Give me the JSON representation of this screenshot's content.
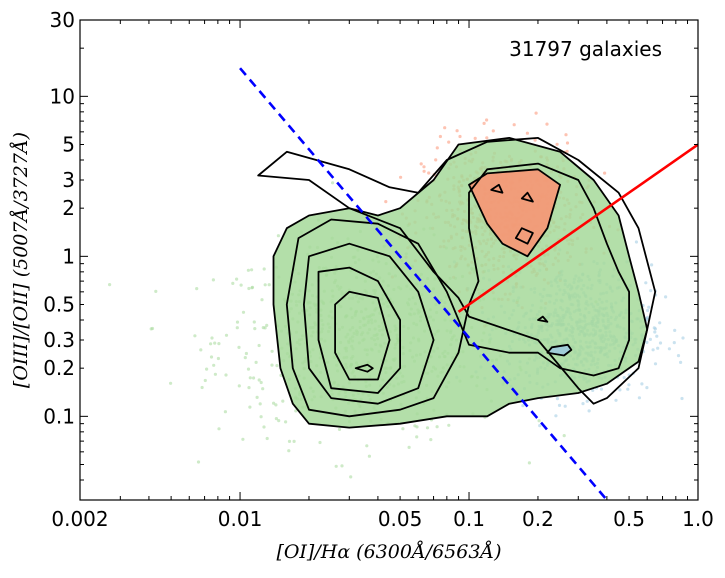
{
  "chart_data": {
    "type": "scatter",
    "title": "",
    "xlabel": "[OI]/Hα  (6300Å/6563Å)",
    "ylabel": "[OIII]/[OII]  (5007Å/3727Å)",
    "xscale": "log",
    "yscale": "log",
    "xlim": [
      0.002,
      1.0
    ],
    "ylim": [
      0.03,
      30
    ],
    "x_ticks": [
      {
        "value": 0.002,
        "label": "0.002"
      },
      {
        "value": 0.01,
        "label": "0.01"
      },
      {
        "value": 0.05,
        "label": "0.05"
      },
      {
        "value": 0.1,
        "label": "0.1"
      },
      {
        "value": 0.2,
        "label": "0.2"
      },
      {
        "value": 0.5,
        "label": "0.5"
      },
      {
        "value": 1.0,
        "label": "1.0"
      }
    ],
    "y_ticks": [
      {
        "value": 0.1,
        "label": "0.1"
      },
      {
        "value": 0.2,
        "label": "0.2"
      },
      {
        "value": 0.3,
        "label": "0.3"
      },
      {
        "value": 0.5,
        "label": "0.5"
      },
      {
        "value": 1,
        "label": "1"
      },
      {
        "value": 2,
        "label": "2"
      },
      {
        "value": 3,
        "label": "3"
      },
      {
        "value": 5,
        "label": "5"
      },
      {
        "value": 10,
        "label": "10"
      },
      {
        "value": 30,
        "label": "30"
      }
    ],
    "annotation": "31797 galaxies",
    "grid": false,
    "series": [
      {
        "color": "#a6d99a",
        "center": [
          0.035,
          0.3
        ],
        "spread": [
          0.32,
          0.3
        ]
      },
      {
        "color": "#fc9272",
        "center": [
          0.14,
          1.8
        ],
        "spread": [
          0.17,
          0.22
        ]
      },
      {
        "color": "#9ecae1",
        "center": [
          0.3,
          0.35
        ],
        "spread": [
          0.16,
          0.2
        ]
      }
    ],
    "lines": [
      {
        "style": "dashed",
        "color": "#0000ff",
        "points": [
          [
            0.01,
            15
          ],
          [
            0.4,
            0.03
          ]
        ]
      },
      {
        "style": "solid",
        "color": "#ff0000",
        "points": [
          [
            0.09,
            0.45
          ],
          [
            1.0,
            5
          ]
        ]
      }
    ],
    "contours": [
      [
        [
          0.012,
          3.2
        ],
        [
          0.02,
          3.0
        ],
        [
          0.03,
          2.0
        ],
        [
          0.05,
          1.5
        ],
        [
          0.07,
          0.8
        ],
        [
          0.09,
          0.55
        ],
        [
          0.1,
          0.42
        ],
        [
          0.2,
          0.3
        ],
        [
          0.3,
          0.15
        ],
        [
          0.35,
          0.12
        ],
        [
          0.4,
          0.13
        ],
        [
          0.55,
          0.2
        ],
        [
          0.6,
          0.35
        ],
        [
          0.65,
          0.6
        ],
        [
          0.55,
          1.5
        ],
        [
          0.45,
          2.5
        ],
        [
          0.3,
          4.0
        ],
        [
          0.2,
          5.5
        ],
        [
          0.12,
          5.2
        ],
        [
          0.08,
          4.0
        ],
        [
          0.06,
          2.5
        ],
        [
          0.045,
          2.7
        ],
        [
          0.03,
          3.5
        ],
        [
          0.016,
          4.5
        ],
        [
          0.012,
          3.2
        ]
      ],
      [
        [
          0.016,
          1.5
        ],
        [
          0.014,
          1.0
        ],
        [
          0.014,
          0.5
        ],
        [
          0.015,
          0.2
        ],
        [
          0.017,
          0.12
        ],
        [
          0.02,
          0.09
        ],
        [
          0.03,
          0.085
        ],
        [
          0.05,
          0.09
        ],
        [
          0.08,
          0.1
        ],
        [
          0.12,
          0.1
        ],
        [
          0.15,
          0.12
        ],
        [
          0.2,
          0.13
        ],
        [
          0.3,
          0.14
        ],
        [
          0.4,
          0.16
        ],
        [
          0.55,
          0.22
        ],
        [
          0.6,
          0.35
        ],
        [
          0.55,
          0.6
        ],
        [
          0.5,
          1.0
        ],
        [
          0.45,
          1.8
        ],
        [
          0.35,
          3.0
        ],
        [
          0.25,
          4.5
        ],
        [
          0.15,
          5.5
        ],
        [
          0.09,
          5.0
        ],
        [
          0.07,
          3.0
        ],
        [
          0.05,
          2.0
        ],
        [
          0.04,
          1.8
        ],
        [
          0.03,
          2.0
        ],
        [
          0.02,
          1.8
        ],
        [
          0.016,
          1.5
        ]
      ],
      [
        [
          0.018,
          1.3
        ],
        [
          0.016,
          0.5
        ],
        [
          0.017,
          0.2
        ],
        [
          0.02,
          0.11
        ],
        [
          0.03,
          0.1
        ],
        [
          0.05,
          0.11
        ],
        [
          0.07,
          0.13
        ],
        [
          0.09,
          0.25
        ],
        [
          0.1,
          0.5
        ],
        [
          0.11,
          0.7
        ],
        [
          0.1,
          1.5
        ],
        [
          0.1,
          2.5
        ],
        [
          0.12,
          3.5
        ],
        [
          0.2,
          3.8
        ],
        [
          0.3,
          3.0
        ],
        [
          0.35,
          2.0
        ],
        [
          0.4,
          1.2
        ],
        [
          0.45,
          0.8
        ],
        [
          0.5,
          0.6
        ],
        [
          0.5,
          0.3
        ],
        [
          0.45,
          0.2
        ],
        [
          0.35,
          0.18
        ],
        [
          0.25,
          0.2
        ],
        [
          0.2,
          0.25
        ],
        [
          0.15,
          0.25
        ],
        [
          0.1,
          0.28
        ],
        [
          0.08,
          0.6
        ],
        [
          0.06,
          1.2
        ],
        [
          0.04,
          1.6
        ],
        [
          0.025,
          1.7
        ],
        [
          0.018,
          1.3
        ]
      ],
      [
        [
          0.02,
          1.0
        ],
        [
          0.019,
          0.5
        ],
        [
          0.02,
          0.2
        ],
        [
          0.025,
          0.13
        ],
        [
          0.04,
          0.12
        ],
        [
          0.06,
          0.15
        ],
        [
          0.07,
          0.3
        ],
        [
          0.06,
          0.6
        ],
        [
          0.045,
          1.0
        ],
        [
          0.03,
          1.2
        ],
        [
          0.02,
          1.0
        ]
      ],
      [
        [
          0.022,
          0.8
        ],
        [
          0.022,
          0.3
        ],
        [
          0.025,
          0.15
        ],
        [
          0.04,
          0.14
        ],
        [
          0.05,
          0.2
        ],
        [
          0.05,
          0.4
        ],
        [
          0.04,
          0.7
        ],
        [
          0.03,
          0.85
        ],
        [
          0.022,
          0.8
        ]
      ],
      [
        [
          0.026,
          0.5
        ],
        [
          0.026,
          0.25
        ],
        [
          0.03,
          0.17
        ],
        [
          0.04,
          0.17
        ],
        [
          0.045,
          0.3
        ],
        [
          0.04,
          0.55
        ],
        [
          0.03,
          0.6
        ],
        [
          0.026,
          0.5
        ]
      ],
      [
        [
          0.032,
          0.2
        ],
        [
          0.036,
          0.19
        ],
        [
          0.038,
          0.2
        ],
        [
          0.036,
          0.21
        ],
        [
          0.032,
          0.2
        ]
      ],
      [
        [
          0.1,
          2.8
        ],
        [
          0.12,
          3.3
        ],
        [
          0.2,
          3.5
        ],
        [
          0.25,
          2.8
        ],
        [
          0.22,
          1.5
        ],
        [
          0.18,
          1.0
        ],
        [
          0.14,
          1.2
        ],
        [
          0.12,
          1.6
        ],
        [
          0.1,
          2.8
        ]
      ],
      [
        [
          0.16,
          1.3
        ],
        [
          0.18,
          1.2
        ],
        [
          0.19,
          1.4
        ],
        [
          0.17,
          1.5
        ],
        [
          0.16,
          1.3
        ]
      ],
      [
        [
          0.22,
          0.25
        ],
        [
          0.26,
          0.24
        ],
        [
          0.28,
          0.26
        ],
        [
          0.27,
          0.28
        ],
        [
          0.23,
          0.27
        ],
        [
          0.22,
          0.25
        ]
      ],
      [
        [
          0.125,
          2.6
        ],
        [
          0.14,
          2.5
        ],
        [
          0.135,
          2.8
        ],
        [
          0.125,
          2.6
        ]
      ],
      [
        [
          0.17,
          2.3
        ],
        [
          0.19,
          2.2
        ],
        [
          0.18,
          2.5
        ],
        [
          0.17,
          2.3
        ]
      ],
      [
        [
          0.2,
          0.4
        ],
        [
          0.22,
          0.39
        ],
        [
          0.21,
          0.42
        ],
        [
          0.2,
          0.4
        ]
      ]
    ],
    "filled_contours": [
      {
        "color": "#a6d99a",
        "index": 1
      },
      {
        "color": "#fc9272",
        "index": 7
      },
      {
        "color": "#9ecae1",
        "index": 9
      }
    ]
  }
}
